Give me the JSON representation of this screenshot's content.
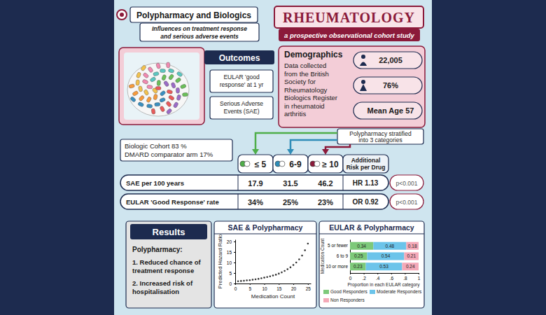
{
  "header": {
    "title": "Polypharmacy and Biologics",
    "subtitle": [
      "Influences on treatment response",
      "and serious adverse events"
    ],
    "journal": "RHEUMATOLOGY",
    "study_type": "a prospective observational cohort study"
  },
  "outcomes": {
    "title": "Outcomes",
    "items": [
      [
        "EULAR 'good",
        "response' at 1 yr"
      ],
      [
        "Serious Adverse",
        "Events (SAE)"
      ]
    ]
  },
  "demographics": {
    "title": "Demographics",
    "text": [
      "Data collected",
      "from the British",
      "Society for",
      "Rheumatology",
      "Biologics Register",
      "in rheumatoid",
      "arthritis"
    ],
    "participants": "22,005",
    "female": "76%",
    "age": "Mean Age 57"
  },
  "cohort": [
    "Biologic Cohort 83 %",
    "DMARD comparator arm 17%"
  ],
  "strata_note": [
    "Polypharmacy stratified",
    "into 3 categories"
  ],
  "table": {
    "columns": [
      "≤ 5",
      "6-9",
      "≥ 10"
    ],
    "effect_header": [
      "Additional",
      "Risk per Drug"
    ],
    "rows": [
      {
        "label": "SAE per 100 years",
        "values": [
          "17.9",
          "31.5",
          "46.2"
        ],
        "effect": "HR 1.13",
        "p": "p<0.001"
      },
      {
        "label": "EULAR 'Good Response' rate",
        "values": [
          "34%",
          "25%",
          "23%"
        ],
        "effect": "OR 0.92",
        "p": "p<0.001"
      }
    ]
  },
  "results": {
    "title": "Results",
    "heading": "Polypharmacy:",
    "points": [
      [
        "1. Reduced chance of",
        "treatment response"
      ],
      [
        "2. Increased risk of",
        "hospitalisation"
      ]
    ]
  },
  "chart_data": [
    {
      "type": "scatter",
      "title": "SAE & Polypharmacy",
      "x_label": "Medication Count",
      "y_label": "Predicted Hazard Ratio",
      "x": [
        1,
        2,
        3,
        4,
        5,
        6,
        7,
        8,
        9,
        10,
        11,
        12,
        13,
        14,
        15,
        16,
        17,
        18,
        19,
        20,
        21,
        22,
        23,
        24,
        25
      ],
      "values": [
        1.1,
        1.2,
        1.3,
        1.5,
        1.6,
        1.8,
        2.0,
        2.2,
        2.5,
        2.8,
        3.1,
        3.4,
        3.8,
        4.2,
        4.7,
        5.3,
        6.0,
        6.8,
        7.7,
        8.8,
        10.0,
        11.5,
        13.3,
        15.8,
        19.0
      ],
      "color": "#333333",
      "marker": "circle",
      "xlim": [
        0,
        26
      ],
      "xticks": [
        0,
        5,
        10,
        15,
        20,
        25
      ],
      "ylim": [
        0,
        21
      ],
      "yticks": [
        0,
        5,
        10,
        15,
        20
      ],
      "grid": false
    },
    {
      "type": "bar",
      "orientation": "horizontal",
      "stacked": true,
      "title": "EULAR & Polypharmacy",
      "x_label": "Proportion in each EULAR category",
      "y_label": "Medication Count",
      "categories": [
        "5 or fewer",
        "6 to 9",
        "10 or more"
      ],
      "series": [
        {
          "name": "Good Responders",
          "color": "#7dc97a",
          "values": [
            0.34,
            0.25,
            0.23
          ]
        },
        {
          "name": "Moderate Responders",
          "color": "#6cc4ea",
          "values": [
            0.48,
            0.54,
            0.53
          ]
        },
        {
          "name": "Non Responders",
          "color": "#f4a9b8",
          "values": [
            0.18,
            0.21,
            0.24
          ]
        }
      ],
      "xlim": [
        0,
        1
      ],
      "xticks": [
        0,
        {
          "value": 0.2,
          "label": ".2"
        },
        {
          "value": 0.4,
          "label": ".4"
        },
        {
          "value": 0.6,
          "label": ".6"
        },
        {
          "value": 0.8,
          "label": ".8"
        },
        1
      ],
      "data_labels": true,
      "legend": "bottom",
      "grid": false
    }
  ]
}
